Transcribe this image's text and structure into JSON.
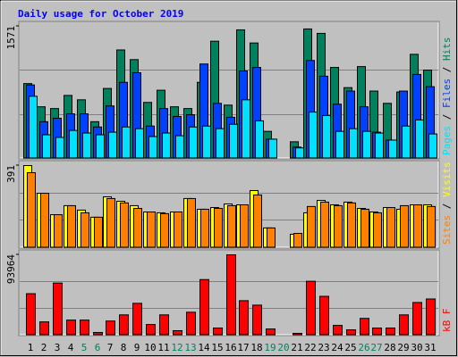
{
  "chart_data": [
    {
      "type": "bar",
      "title": "Daily usage for October 2019",
      "categories": [
        "1",
        "2",
        "3",
        "4",
        "5",
        "6",
        "7",
        "8",
        "9",
        "10",
        "11",
        "12",
        "13",
        "14",
        "15",
        "16",
        "17",
        "18",
        "19",
        "20",
        "21",
        "22",
        "23",
        "24",
        "25",
        "26",
        "27",
        "28",
        "29",
        "30",
        "31"
      ],
      "category_colors": [
        "#000000",
        "#000000",
        "#000000",
        "#000000",
        "#008060",
        "#008060",
        "#000000",
        "#000000",
        "#000000",
        "#000000",
        "#000000",
        "#008060",
        "#008060",
        "#000000",
        "#000000",
        "#000000",
        "#000000",
        "#000000",
        "#008060",
        "#008060",
        "#000000",
        "#000000",
        "#000000",
        "#000000",
        "#000000",
        "#008060",
        "#008060",
        "#000000",
        "#000000",
        "#000000",
        "#000000"
      ],
      "ylim": [
        0,
        1571
      ],
      "yticks": [
        1571
      ],
      "series": [
        {
          "name": "Hits",
          "color": "#00805c",
          "values": [
            890,
            614,
            593,
            749,
            697,
            437,
            832,
            1290,
            1175,
            666,
            811,
            614,
            593,
            905,
            1394,
            634,
            1529,
            1373,
            322,
            0,
            198,
            1540,
            1487,
            1082,
            842,
            1092,
            801,
            655,
            790,
            1238,
            1050
          ]
        },
        {
          "name": "Files",
          "color": "#0040ff",
          "values": [
            874,
            437,
            478,
            530,
            530,
            374,
            624,
            905,
            1019,
            385,
            593,
            499,
            520,
            1123,
            655,
            489,
            1040,
            1082,
            229,
            0,
            135,
            1165,
            978,
            645,
            801,
            614,
            312,
            218,
            801,
            999,
            853
          ]
        },
        {
          "name": "Pages",
          "color": "#00e0ff",
          "values": [
            739,
            281,
            250,
            333,
            302,
            281,
            312,
            374,
            354,
            260,
            302,
            270,
            374,
            385,
            354,
            406,
            697,
            447,
            229,
            0,
            125,
            551,
            510,
            322,
            354,
            322,
            302,
            218,
            385,
            458,
            291
          ]
        }
      ]
    },
    {
      "type": "bar",
      "ylim": [
        0,
        391
      ],
      "yticks": [
        391
      ],
      "series": [
        {
          "name": "Visits",
          "color": "#ffff00",
          "values": [
            391,
            259,
            157,
            200,
            179,
            145,
            242,
            221,
            200,
            170,
            166,
            170,
            234,
            183,
            191,
            208,
            204,
            272,
            94,
            0,
            64,
            166,
            225,
            204,
            217,
            187,
            170,
            191,
            183,
            204,
            204
          ]
        },
        {
          "name": "Sites",
          "color": "#ff8000",
          "values": [
            357,
            259,
            157,
            200,
            166,
            145,
            234,
            213,
            187,
            170,
            162,
            170,
            234,
            183,
            187,
            200,
            204,
            251,
            94,
            0,
            68,
            196,
            217,
            200,
            213,
            183,
            166,
            191,
            200,
            204,
            196
          ]
        }
      ]
    },
    {
      "type": "bar",
      "ylim": [
        0,
        93964
      ],
      "yticks": [
        93964
      ],
      "series": [
        {
          "name": "kB F",
          "color": "#ff0000",
          "values": [
            48500,
            15500,
            60900,
            17600,
            17600,
            3100,
            16500,
            23700,
            37200,
            12400,
            23700,
            5200,
            26800,
            65000,
            8300,
            93964,
            40300,
            35100,
            7200,
            0,
            2100,
            63000,
            45400,
            11400,
            6200,
            19600,
            8300,
            8300,
            23700,
            38200,
            42300
          ]
        }
      ]
    }
  ]
}
